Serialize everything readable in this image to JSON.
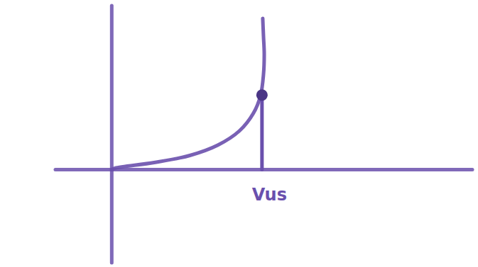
{
  "chart_data": {
    "type": "line",
    "x": [
      0,
      0.09,
      1.13,
      2.08,
      2.83,
      3.4,
      3.77,
      3.96,
      4.04,
      4.06,
      4.04,
      4.02
    ],
    "values": [
      0,
      0.04,
      0.19,
      0.38,
      0.66,
      1.04,
      1.51,
      1.98,
      2.55,
      3.11,
      3.58,
      4.06
    ],
    "color": "#6a50ad",
    "xlim": [
      -1.5,
      9.6
    ],
    "ylim": [
      -2.5,
      4.4
    ],
    "tick_labels": false,
    "grid": false,
    "annotations": [
      {
        "text": "Vus",
        "x": 4,
        "y": 2
      }
    ]
  }
}
